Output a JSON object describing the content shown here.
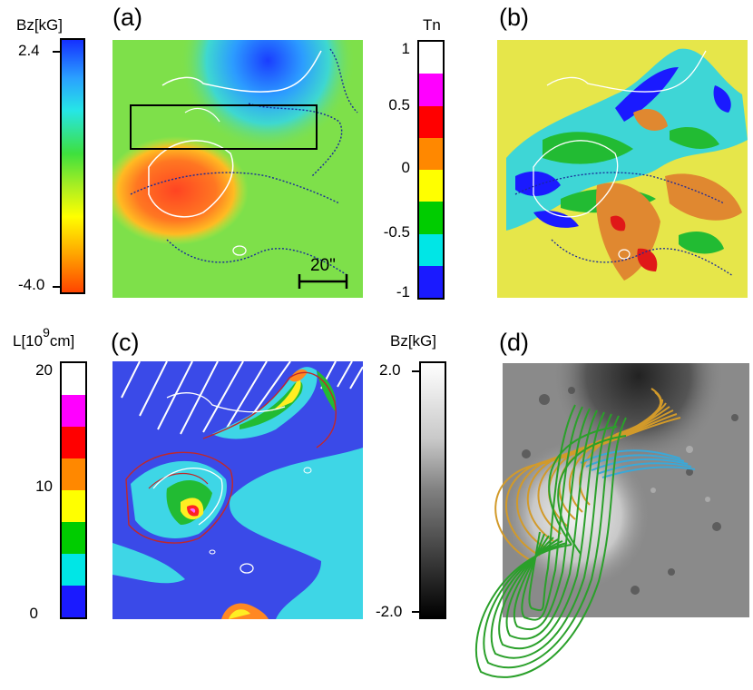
{
  "panels": {
    "a": {
      "label": "(a)",
      "scale_label": "20\""
    },
    "b": {
      "label": "(b)"
    },
    "c": {
      "label": "(c)"
    },
    "d": {
      "label": "(d)"
    }
  },
  "colorbars": {
    "bz_a": {
      "title": "Bz[kG]",
      "max": "2.4",
      "min": "-4.0"
    },
    "tn": {
      "title": "Tn",
      "ticks": [
        "1",
        "0.5",
        "0",
        "-0.5",
        "-1"
      ],
      "colors": [
        "#ffffff",
        "#ff00ff",
        "#ff0000",
        "#ff8800",
        "#ffff00",
        "#00cc00",
        "#00e6e6",
        "#1a1aff"
      ]
    },
    "length": {
      "title_main": "L[10",
      "title_exp": "9",
      "title_unit": "cm]",
      "ticks": [
        "20",
        "10",
        "0"
      ],
      "colors": [
        "#ffffff",
        "#ff00ff",
        "#ff0000",
        "#ff8800",
        "#ffff00",
        "#00cc00",
        "#00e6e6",
        "#1a1aff"
      ]
    },
    "bz_d": {
      "title": "Bz[kG]",
      "max": "2.0",
      "min": "-2.0"
    }
  },
  "style": {
    "field_green": "#7ee04a",
    "contour_white": "#ffffff",
    "contour_blue": "#1a2a9a",
    "contour_red": "#c0282a",
    "line_gold": "#d29a2a",
    "line_green": "#2aa02a",
    "line_cyan": "#3aa8d8"
  }
}
